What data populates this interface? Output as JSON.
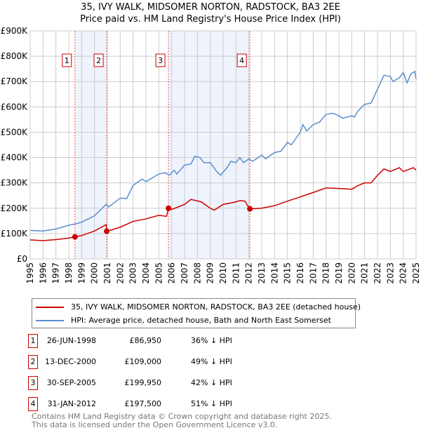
{
  "header": {
    "line1": "35, IVY WALK, MIDSOMER NORTON, RADSTOCK, BA3 2EE",
    "line2": "Price paid vs. HM Land Registry's House Price Index (HPI)"
  },
  "chart_data": {
    "type": "line",
    "xlim": [
      1995,
      2025
    ],
    "ylim": [
      0,
      900000
    ],
    "yticks": [
      "£0",
      "£100K",
      "£200K",
      "£300K",
      "£400K",
      "£500K",
      "£600K",
      "£700K",
      "£800K",
      "£900K"
    ],
    "xticks": [
      "1995",
      "1996",
      "1997",
      "1998",
      "1999",
      "2000",
      "2001",
      "2002",
      "2003",
      "2004",
      "2005",
      "2006",
      "2007",
      "2008",
      "2009",
      "2010",
      "2011",
      "2012",
      "2013",
      "2014",
      "2015",
      "2016",
      "2017",
      "2018",
      "2019",
      "2020",
      "2021",
      "2022",
      "2023",
      "2024",
      "2025"
    ],
    "colors": {
      "property": "#cc0000",
      "hpi": "#5b8dd0",
      "shade": "#eef3fc",
      "grid": "#cccccc"
    },
    "series": [
      {
        "name": "35, IVY WALK, MIDSOMER NORTON, RADSTOCK, BA3 2EE (detached house)",
        "key": "property",
        "x": [
          1995,
          1996,
          1997,
          1998,
          1998.48,
          1999,
          2000,
          2000.9,
          2000.95,
          2002,
          2003,
          2004,
          2005,
          2005.6,
          2005.75,
          2006,
          2007,
          2007.5,
          2008.3,
          2009,
          2009.3,
          2010,
          2011,
          2011.3,
          2011.7,
          2012.05,
          2013,
          2014,
          2015,
          2016,
          2017,
          2018,
          2019,
          2020,
          2020.5,
          2021,
          2021.5,
          2022,
          2022.5,
          2023,
          2023.7,
          2024,
          2024.8,
          2025
        ],
        "y": [
          75000,
          72000,
          76000,
          82000,
          86950,
          92000,
          110000,
          135000,
          109000,
          125000,
          148000,
          158000,
          172000,
          168000,
          199950,
          195000,
          215000,
          235000,
          225000,
          200000,
          192000,
          215000,
          225000,
          230000,
          228000,
          197500,
          200000,
          210000,
          228000,
          245000,
          262000,
          280000,
          278000,
          275000,
          290000,
          300000,
          300000,
          330000,
          355000,
          345000,
          360000,
          345000,
          360000,
          350000
        ]
      },
      {
        "name": "HPI: Average price, detached house, Bath and North East Somerset",
        "key": "hpi",
        "x": [
          1995,
          1996,
          1997,
          1998,
          1998.5,
          1999,
          2000,
          2000.9,
          2001.1,
          2002,
          2002.5,
          2003,
          2003.7,
          2004,
          2005,
          2005.5,
          2005.8,
          2006.2,
          2006.4,
          2007,
          2007.5,
          2007.8,
          2008.2,
          2008.5,
          2009,
          2009.5,
          2009.8,
          2010.3,
          2010.6,
          2011,
          2011.3,
          2011.6,
          2012,
          2012.3,
          2013,
          2013.3,
          2014,
          2014.5,
          2015,
          2015.3,
          2016,
          2016.2,
          2016.5,
          2017,
          2017.5,
          2018,
          2018.5,
          2019,
          2019.3,
          2020,
          2020.2,
          2020.5,
          2021,
          2021.5,
          2022,
          2022.5,
          2023,
          2023.2,
          2023.7,
          2024,
          2024.3,
          2024.6,
          2024.9,
          2025
        ],
        "y": [
          112000,
          110000,
          118000,
          133000,
          138000,
          145000,
          170000,
          215000,
          205000,
          240000,
          238000,
          290000,
          315000,
          305000,
          335000,
          340000,
          330000,
          350000,
          335000,
          370000,
          375000,
          405000,
          400000,
          380000,
          380000,
          345000,
          330000,
          360000,
          385000,
          380000,
          400000,
          380000,
          395000,
          385000,
          410000,
          395000,
          420000,
          425000,
          460000,
          450000,
          500000,
          530000,
          505000,
          530000,
          540000,
          570000,
          575000,
          565000,
          555000,
          565000,
          560000,
          585000,
          610000,
          615000,
          670000,
          725000,
          720000,
          700000,
          715000,
          735000,
          695000,
          730000,
          740000,
          710000
        ]
      }
    ],
    "sales": [
      {
        "label": "1",
        "x": 1998.48,
        "y": 86950,
        "date": "26-JUN-1998",
        "price": "£86,950",
        "hpi": "36% ↓ HPI"
      },
      {
        "label": "2",
        "x": 2000.95,
        "y": 109000,
        "date": "13-DEC-2000",
        "price": "£109,000",
        "hpi": "49% ↓ HPI"
      },
      {
        "label": "3",
        "x": 2005.75,
        "y": 199950,
        "date": "30-SEP-2005",
        "price": "£199,950",
        "hpi": "42% ↓ HPI"
      },
      {
        "label": "4",
        "x": 2012.08,
        "y": 197500,
        "date": "31-JAN-2012",
        "price": "£197,500",
        "hpi": "51% ↓ HPI"
      }
    ],
    "shaded": [
      [
        1998.48,
        2000.95
      ],
      [
        2005.75,
        2012.08
      ]
    ],
    "legend": "below"
  },
  "footer": {
    "line1": "Contains HM Land Registry data © Crown copyright and database right 2025.",
    "line2": "This data is licensed under the Open Government Licence v3.0."
  }
}
